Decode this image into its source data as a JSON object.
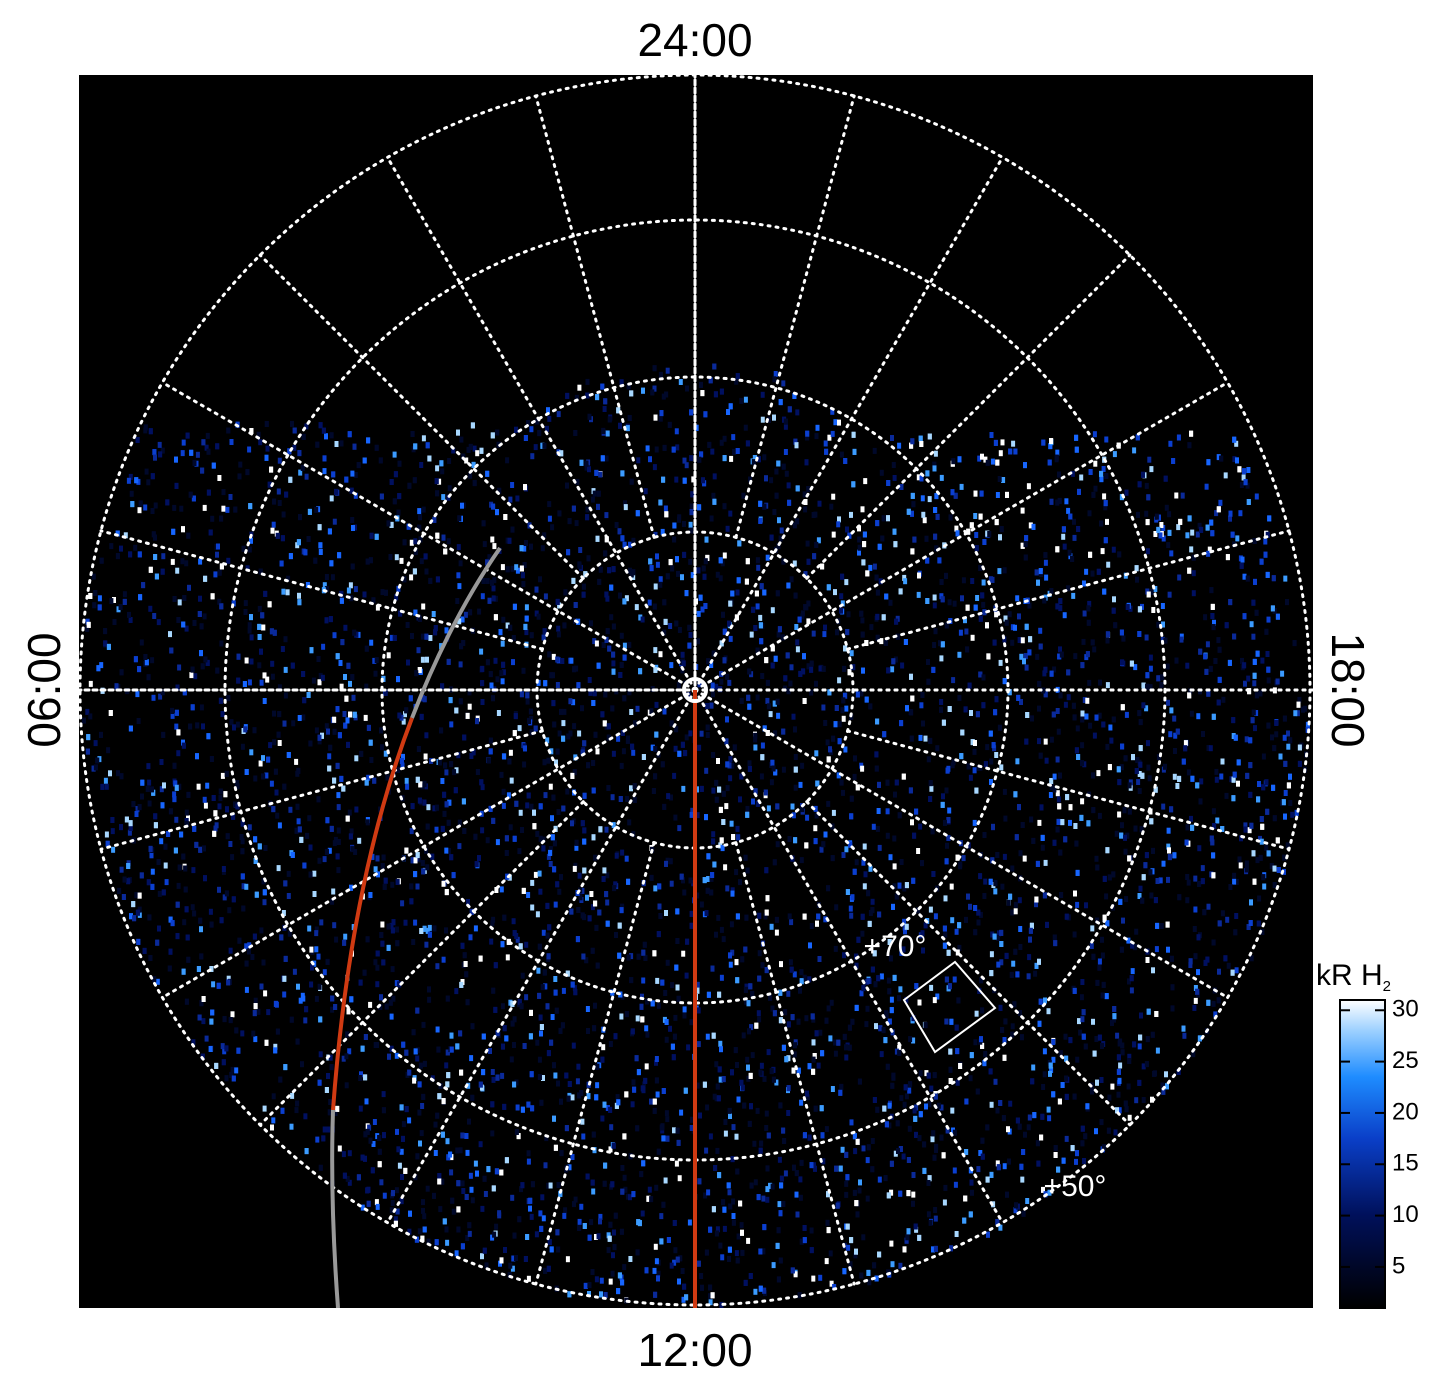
{
  "local_time_labels": {
    "top": "24:00",
    "bottom": "12:00",
    "left": "06:00",
    "right": "18:00"
  },
  "latitude_labels": [
    "+70°",
    "+50°"
  ],
  "colorbar": {
    "title": "kR H",
    "title_subscript": "2",
    "lim": [
      1,
      31
    ],
    "ticks": [
      5,
      10,
      15,
      20,
      25,
      30
    ]
  }
}
